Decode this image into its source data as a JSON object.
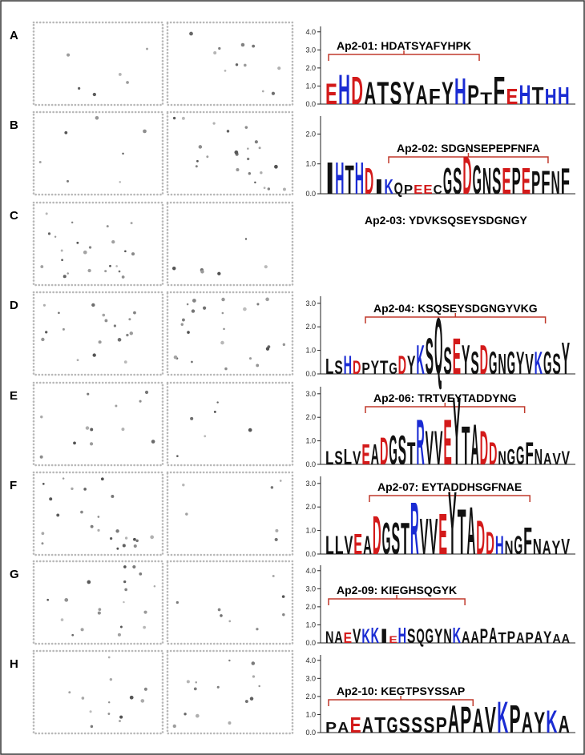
{
  "panels": [
    {
      "letter": "A",
      "title": "Ap2-01: HDATSYAFYHPK",
      "yticks": [
        {
          "value": 0,
          "label": "0.0"
        },
        {
          "value": 1,
          "label": "1.0"
        },
        {
          "value": 2,
          "label": "2.0"
        },
        {
          "value": 3,
          "label": "3.0"
        },
        {
          "value": 4,
          "label": "4.0"
        }
      ],
      "ylim": [
        0,
        4.3
      ],
      "logo": {
        "letters": [
          "E",
          "H",
          "D",
          "A",
          "T",
          "S",
          "Y",
          "A",
          "F",
          "Y",
          "H",
          "P",
          "T",
          "F",
          "E",
          "H",
          "T",
          "H",
          "H"
        ],
        "heights": [
          1.2,
          1.7,
          1.6,
          1.3,
          1.3,
          1.3,
          1.3,
          1.1,
          0.9,
          1.3,
          1.5,
          1.1,
          0.7,
          1.6,
          0.9,
          1.1,
          1.0,
          0.9,
          1.0
        ]
      }
    },
    {
      "letter": "B",
      "title": "Ap2-02: SDGNSEPEPFNFA",
      "yticks": [
        {
          "value": 0,
          "label": "0.0"
        },
        {
          "value": 1,
          "label": "1.0"
        },
        {
          "value": 2,
          "label": "2.0"
        }
      ],
      "ylim": [
        0,
        2.6
      ],
      "logo": {
        "letters": [
          "I",
          "H",
          "T",
          "H",
          "D",
          "I",
          "K",
          "Q",
          "P",
          "E",
          "E",
          "C",
          "G",
          "S",
          "D",
          "G",
          "N",
          "S",
          "E",
          "P",
          "E",
          "P",
          "F",
          "N",
          "F"
        ],
        "heights": [
          1.1,
          1.1,
          1.0,
          1.1,
          0.9,
          0.5,
          0.5,
          0.4,
          0.3,
          0.3,
          0.3,
          0.3,
          0.9,
          0.9,
          1.3,
          1.0,
          0.9,
          0.9,
          0.9,
          0.9,
          0.9,
          0.8,
          0.8,
          0.8,
          0.9
        ]
      }
    },
    {
      "letter": "C",
      "title": "Ap2-03: YDVKSQSEYSDGNGY"
    },
    {
      "letter": "D",
      "title": "Ap2-04: KSQSEYSDGNGYVKG",
      "yticks": [
        {
          "value": 0,
          "label": "0.0"
        },
        {
          "value": 1,
          "label": "1.0"
        },
        {
          "value": 2,
          "label": "2.0"
        },
        {
          "value": 3,
          "label": "3.0"
        }
      ],
      "ylim": [
        0,
        3.3
      ],
      "logo": {
        "letters": [
          "L",
          "S",
          "H",
          "D",
          "P",
          "Y",
          "T",
          "G",
          "D",
          "Y",
          "K",
          "S",
          "Q",
          "S",
          "E",
          "Y",
          "S",
          "D",
          "G",
          "N",
          "G",
          "Y",
          "V",
          "K",
          "G",
          "S",
          "Y"
        ],
        "heights": [
          0.7,
          0.6,
          0.8,
          0.6,
          0.5,
          0.6,
          0.6,
          0.5,
          0.8,
          0.8,
          1.3,
          1.6,
          2.5,
          1.2,
          1.6,
          1.3,
          1.0,
          1.3,
          1.0,
          0.9,
          1.0,
          1.0,
          0.9,
          1.0,
          1.0,
          0.9,
          1.4
        ]
      }
    },
    {
      "letter": "E",
      "title": "Ap2-06: TRTVEYTADDYNG",
      "yticks": [
        {
          "value": 0,
          "label": "0.0"
        },
        {
          "value": 1,
          "label": "1.0"
        },
        {
          "value": 2,
          "label": "2.0"
        },
        {
          "value": 3,
          "label": "3.0"
        }
      ],
      "ylim": [
        0,
        3.3
      ],
      "logo": {
        "letters": [
          "L",
          "S",
          "L",
          "V",
          "E",
          "A",
          "D",
          "G",
          "S",
          "T",
          "R",
          "V",
          "V",
          "E",
          "Y",
          "T",
          "A",
          "D",
          "D",
          "N",
          "G",
          "G",
          "F",
          "N",
          "A",
          "V",
          "V"
        ],
        "heights": [
          0.6,
          0.6,
          0.7,
          0.6,
          0.9,
          0.9,
          1.2,
          1.3,
          1.3,
          1.0,
          2.0,
          1.5,
          1.5,
          2.0,
          3.0,
          1.7,
          1.8,
          1.5,
          1.0,
          0.6,
          0.7,
          0.8,
          1.0,
          0.7,
          0.5,
          0.5,
          0.6
        ]
      }
    },
    {
      "letter": "F",
      "title": "Ap2-07: EYTADDHSGFNAE",
      "yticks": [
        {
          "value": 0,
          "label": "0.0"
        },
        {
          "value": 1,
          "label": "1.0"
        },
        {
          "value": 2,
          "label": "2.0"
        },
        {
          "value": 3,
          "label": "3.0"
        }
      ],
      "ylim": [
        0,
        3.3
      ],
      "logo": {
        "letters": [
          "L",
          "L",
          "V",
          "E",
          "A",
          "D",
          "G",
          "S",
          "T",
          "R",
          "V",
          "V",
          "E",
          "Y",
          "T",
          "A",
          "D",
          "D",
          "H",
          "N",
          "G",
          "F",
          "N",
          "A",
          "Y",
          "V"
        ],
        "heights": [
          0.8,
          0.8,
          0.8,
          0.9,
          0.8,
          1.7,
          1.4,
          1.4,
          1.4,
          2.3,
          1.6,
          1.6,
          1.8,
          2.8,
          2.0,
          2.1,
          1.5,
          1.0,
          0.8,
          0.6,
          0.8,
          1.2,
          0.7,
          0.6,
          0.6,
          0.7
        ]
      }
    },
    {
      "letter": "G",
      "title": "Ap2-09: KIEGHSQGYK",
      "yticks": [
        {
          "value": 0,
          "label": "0.0"
        },
        {
          "value": 1,
          "label": "1.0"
        },
        {
          "value": 2,
          "label": "2.0"
        },
        {
          "value": 3,
          "label": "3.0"
        },
        {
          "value": 4,
          "label": "4.0"
        }
      ],
      "ylim": [
        0,
        4.3
      ],
      "logo": {
        "letters": [
          "N",
          "A",
          "E",
          "V",
          "K",
          "K",
          "I",
          "E",
          "H",
          "S",
          "Q",
          "G",
          "Y",
          "N",
          "K",
          "A",
          "A",
          "P",
          "A",
          "T",
          "P",
          "A",
          "P",
          "A",
          "Y",
          "A",
          "A"
        ],
        "heights": [
          0.7,
          0.7,
          0.6,
          0.8,
          0.8,
          0.9,
          0.8,
          0.4,
          0.9,
          0.8,
          0.8,
          0.8,
          0.8,
          0.8,
          0.9,
          0.7,
          0.7,
          0.8,
          0.9,
          0.6,
          0.7,
          0.6,
          0.6,
          0.7,
          0.7,
          0.5,
          0.5
        ]
      }
    },
    {
      "letter": "H",
      "title": "Ap2-10: KEGTPSYSSAP",
      "yticks": [
        {
          "value": 0,
          "label": "0.0"
        },
        {
          "value": 1,
          "label": "1.0"
        },
        {
          "value": 2,
          "label": "2.0"
        },
        {
          "value": 3,
          "label": "3.0"
        },
        {
          "value": 4,
          "label": "4.0"
        }
      ],
      "ylim": [
        0,
        4.3
      ],
      "logo": {
        "letters": [
          "P",
          "A",
          "E",
          "A",
          "T",
          "G",
          "S",
          "S",
          "S",
          "P",
          "A",
          "P",
          "A",
          "V",
          "K",
          "P",
          "A",
          "Y",
          "K",
          "A"
        ],
        "heights": [
          0.6,
          0.6,
          0.9,
          0.9,
          0.9,
          0.9,
          0.9,
          0.9,
          0.9,
          0.9,
          1.6,
          1.5,
          1.4,
          1.5,
          1.8,
          1.6,
          1.2,
          1.2,
          1.3,
          1.0
        ]
      }
    }
  ]
}
